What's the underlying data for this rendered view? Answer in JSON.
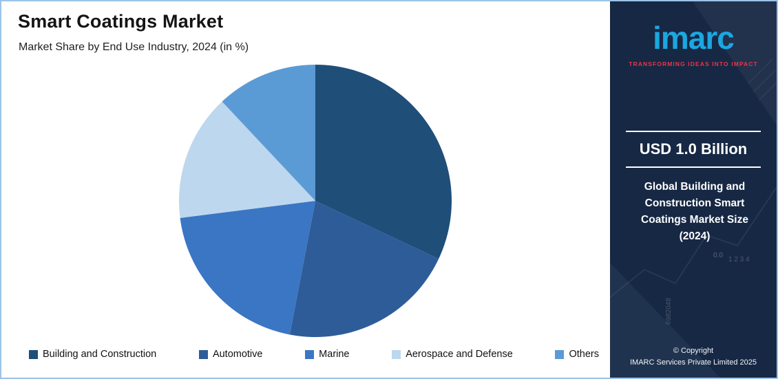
{
  "header": {
    "title": "Smart Coatings Market",
    "subtitle": "Market Share by End Use Industry, 2024 (in %)"
  },
  "chart_data": {
    "type": "pie",
    "title": "Smart Coatings Market",
    "subtitle": "Market Share by End Use Industry, 2024 (in %)",
    "unit": "%",
    "start_angle_deg": -90,
    "direction": "clockwise",
    "legend_position": "bottom",
    "slices": [
      {
        "label": "Building and Construction",
        "value": 32,
        "color": "#1F4E79"
      },
      {
        "label": "Automotive",
        "value": 21,
        "color": "#2E5C99"
      },
      {
        "label": "Marine",
        "value": 20,
        "color": "#3B76C4"
      },
      {
        "label": "Aerospace and Defense",
        "value": 15,
        "color": "#BDD7EE"
      },
      {
        "label": "Others",
        "value": 12,
        "color": "#5B9BD5"
      }
    ]
  },
  "sidebar": {
    "logo_text": "imarc",
    "tagline": "TRANSFORMING IDEAS INTO IMPACT",
    "metric_value": "USD 1.0 Billion",
    "metric_caption": "Global Building and Construction Smart Coatings Market Size (2024)",
    "copyright_line1": "© Copyright",
    "copyright_line2": "IMARC Services Private Limited 2025",
    "colors": {
      "background": "#172844",
      "logo_blue": "#1BA7E0",
      "tagline_red": "#E8354B"
    }
  },
  "decorative": {
    "watermarks": [
      "0.0",
      "1 2 3 4",
      "6982048"
    ]
  }
}
